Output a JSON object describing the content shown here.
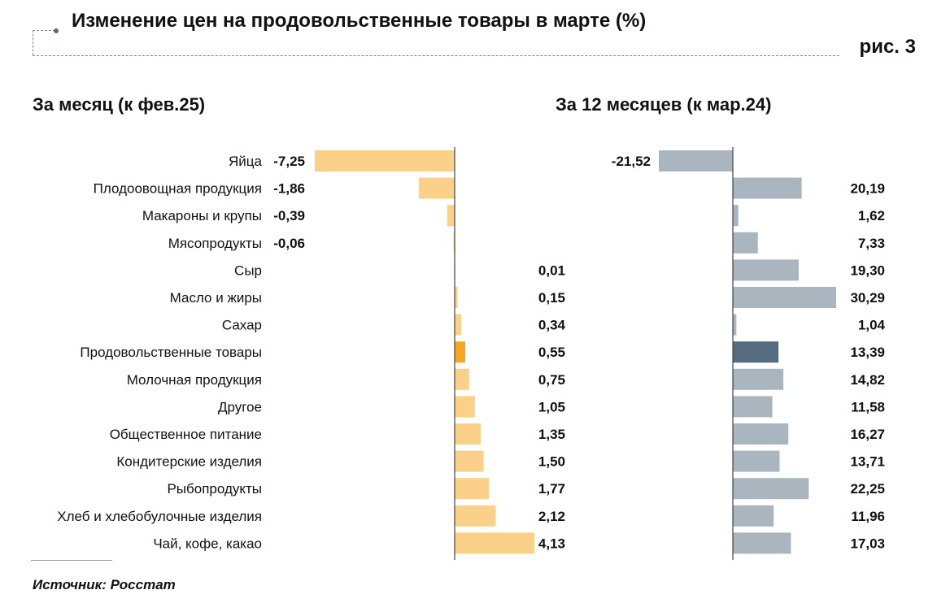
{
  "title": "Изменение цен на продовольственные товары в марте (%)",
  "figure_label": "рис. 3",
  "source": "Источник: Росстат",
  "colors": {
    "monthly_bar": "#fbd18a",
    "monthly_highlight": "#f7a623",
    "annual_bar": "#a9b5bf",
    "annual_highlight": "#556b7f",
    "axis": "#444444"
  },
  "chart_data": [
    {
      "type": "bar",
      "orientation": "horizontal",
      "title": "За месяц (к фев.25)",
      "categories": [
        "Яйца",
        "Плодоовощная продукция",
        "Макароны и крупы",
        "Мясопродукты",
        "Сыр",
        "Масло и жиры",
        "Сахар",
        "Продовольственные товары",
        "Молочная продукция",
        "Другое",
        "Общественное питание",
        "Кондитерские изделия",
        "Рыбопродукты",
        "Хлеб и хлебобулочные изделия",
        "Чай, кофе, какао"
      ],
      "values": [
        -7.25,
        -1.86,
        -0.39,
        -0.06,
        0.01,
        0.15,
        0.34,
        0.55,
        0.75,
        1.05,
        1.35,
        1.5,
        1.77,
        2.12,
        4.13
      ],
      "labels": [
        "-7,25",
        "-1,86",
        "-0,39",
        "-0,06",
        "0,01",
        "0,15",
        "0,34",
        "0,55",
        "0,75",
        "1,05",
        "1,35",
        "1,50",
        "1,77",
        "2,12",
        "4,13"
      ],
      "highlight": "Продовольственные товары",
      "xlim": [
        -7.25,
        4.13
      ]
    },
    {
      "type": "bar",
      "orientation": "horizontal",
      "title": "За 12 месяцев (к мар.24)",
      "categories": [
        "Яйца",
        "Плодоовощная продукция",
        "Макароны и крупы",
        "Мясопродукты",
        "Сыр",
        "Масло и жиры",
        "Сахар",
        "Продовольственные товары",
        "Молочная продукция",
        "Другое",
        "Общественное питание",
        "Кондитерские изделия",
        "Рыбопродукты",
        "Хлеб и хлебобулочные изделия",
        "Чай, кофе, какао"
      ],
      "values": [
        -21.52,
        20.19,
        1.62,
        7.33,
        19.3,
        30.29,
        1.04,
        13.39,
        14.82,
        11.58,
        16.27,
        13.71,
        22.25,
        11.96,
        17.03
      ],
      "labels": [
        "-21,52",
        "20,19",
        "1,62",
        "7,33",
        "19,30",
        "30,29",
        "1,04",
        "13,39",
        "14,82",
        "11,58",
        "16,27",
        "13,71",
        "22,25",
        "11,96",
        "17,03"
      ],
      "highlight": "Продовольственные товары",
      "xlim": [
        -21.52,
        30.29
      ]
    }
  ]
}
